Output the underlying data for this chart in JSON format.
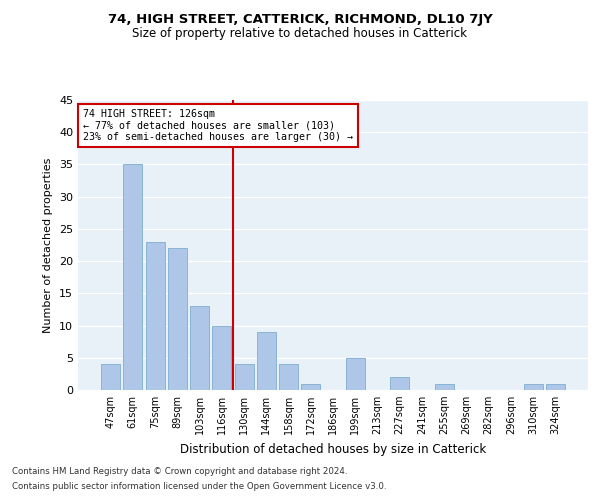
{
  "title": "74, HIGH STREET, CATTERICK, RICHMOND, DL10 7JY",
  "subtitle": "Size of property relative to detached houses in Catterick",
  "xlabel": "Distribution of detached houses by size in Catterick",
  "ylabel": "Number of detached properties",
  "categories": [
    "47sqm",
    "61sqm",
    "75sqm",
    "89sqm",
    "103sqm",
    "116sqm",
    "130sqm",
    "144sqm",
    "158sqm",
    "172sqm",
    "186sqm",
    "199sqm",
    "213sqm",
    "227sqm",
    "241sqm",
    "255sqm",
    "269sqm",
    "282sqm",
    "296sqm",
    "310sqm",
    "324sqm"
  ],
  "values": [
    4,
    35,
    23,
    22,
    13,
    10,
    4,
    9,
    4,
    1,
    0,
    5,
    0,
    2,
    0,
    1,
    0,
    0,
    0,
    1,
    1
  ],
  "bar_color": "#aec6e8",
  "bar_edgecolor": "#8ab4d4",
  "background_color": "#e8f0f8",
  "grid_color": "#ffffff",
  "vline_x": 5.5,
  "vline_color": "#cc0000",
  "annotation_text": "74 HIGH STREET: 126sqm\n← 77% of detached houses are smaller (103)\n23% of semi-detached houses are larger (30) →",
  "annotation_box_edgecolor": "#cc0000",
  "ylim": [
    0,
    45
  ],
  "yticks": [
    0,
    5,
    10,
    15,
    20,
    25,
    30,
    35,
    40,
    45
  ],
  "footnote1": "Contains HM Land Registry data © Crown copyright and database right 2024.",
  "footnote2": "Contains public sector information licensed under the Open Government Licence v3.0."
}
